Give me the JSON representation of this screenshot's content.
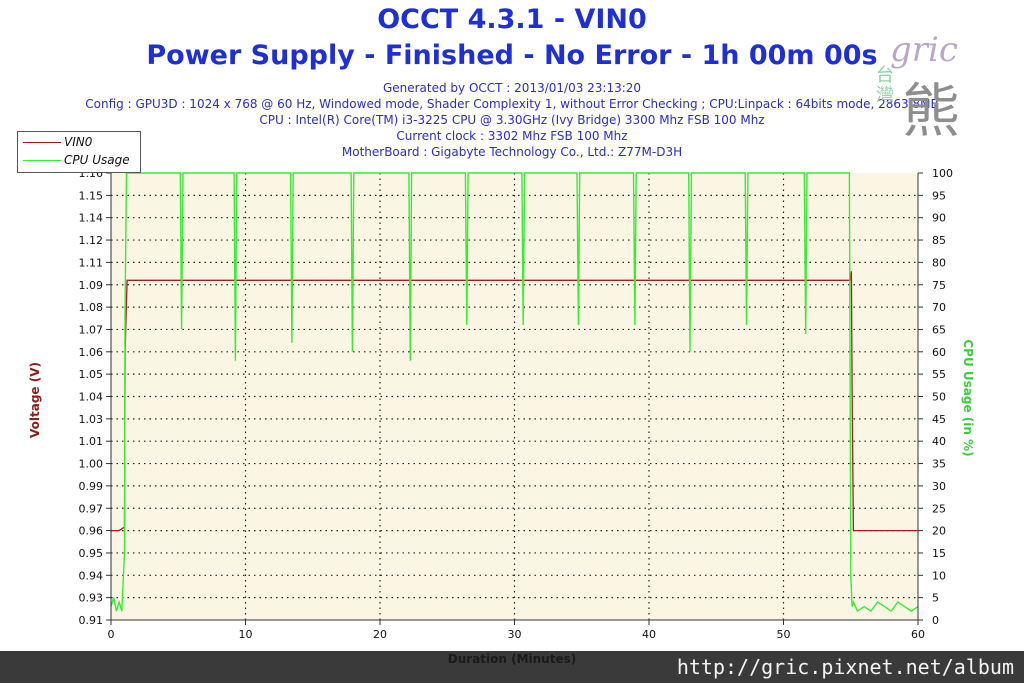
{
  "title": "OCCT 4.3.1 - VIN0",
  "subtitle": "Power Supply - Finished - No Error - 1h 00m 00s",
  "info_lines": [
    "Generated by OCCT : 2013/01/03 23:13:20",
    "Config : GPU3D : 1024 x 768 @ 60 Hz, Windowed mode, Shader Complexity 1, without Error Checking ; CPU:Linpack : 64bits mode, 2863.8MB",
    "CPU : Intel(R) Core(TM) i3-3225 CPU @ 3.30GHz (Ivy Bridge) 3300 Mhz FSB 100 Mhz",
    "Current clock : 3302 Mhz FSB 100 Mhz",
    "MotherBoard : Gigabyte Technology Co., Ltd.: Z77M-D3H"
  ],
  "watermark": {
    "text": "gric",
    "vertical": [
      "台",
      "灣"
    ],
    "mark": "熊"
  },
  "footer_url": "http://gric.pixnet.net/album",
  "colors": {
    "title": "#1f2fd6",
    "info": "#2b2bd0",
    "vin0": "#a02020",
    "cpu": "#33ee33",
    "plot_bg": "#fbf6e4",
    "footer_bg": "#3a3a3a"
  },
  "chart_data": {
    "type": "line",
    "xlabel": "Duration (Minutes)",
    "ylabel": "Voltage (V)",
    "y2label": "CPU Usage (in %)",
    "xlim": [
      0,
      60
    ],
    "ylim": [
      0.91,
      1.16
    ],
    "y2lim": [
      0,
      100
    ],
    "x_ticks": [
      0,
      10,
      20,
      30,
      40,
      50,
      60
    ],
    "y_ticks": [
      0.91,
      0.93,
      0.94,
      0.95,
      0.96,
      0.97,
      0.99,
      1.0,
      1.01,
      1.03,
      1.04,
      1.05,
      1.06,
      1.07,
      1.08,
      1.09,
      1.11,
      1.12,
      1.14,
      1.15,
      1.16
    ],
    "y_tick_labels": [
      "0.91",
      "0.93",
      "0.94",
      "0.95",
      "0.96",
      "0.97",
      "0.99",
      "1.00",
      "1.01",
      "1.03",
      "1.04",
      "1.05",
      "1.06",
      "1.07",
      "1.08",
      "1.09",
      "1.11",
      "1.12",
      "1.14",
      "1.15",
      "1.16"
    ],
    "y2_ticks": [
      0,
      5,
      10,
      15,
      20,
      25,
      30,
      35,
      40,
      45,
      50,
      55,
      60,
      65,
      70,
      75,
      80,
      85,
      90,
      95,
      100
    ],
    "grid": true,
    "legend": "top-left",
    "series": [
      {
        "name": "VIN0",
        "axis": "left",
        "x": [
          0,
          0.6,
          0.6,
          1.0,
          1.05,
          1.2,
          55.0,
          55.05,
          55.1,
          55.2,
          60
        ],
        "y": [
          0.96,
          0.96,
          0.96,
          0.962,
          1.06,
          1.1,
          1.1,
          1.105,
          1.04,
          0.96,
          0.96
        ]
      },
      {
        "name": "CPU Usage",
        "axis": "right",
        "x": [
          0,
          0.2,
          0.4,
          0.6,
          0.8,
          1.0,
          1.05,
          1.15,
          1.25,
          1.35,
          5.15,
          5.25,
          5.35,
          5.45,
          9.15,
          9.25,
          9.35,
          9.45,
          13.35,
          13.45,
          13.55,
          13.65,
          17.85,
          17.95,
          18.05,
          18.15,
          22.15,
          22.25,
          22.35,
          22.45,
          26.35,
          26.45,
          26.55,
          26.65,
          30.55,
          30.65,
          30.75,
          30.85,
          34.65,
          34.75,
          34.85,
          34.95,
          38.85,
          38.95,
          39.05,
          39.15,
          42.95,
          43.05,
          43.15,
          43.25,
          47.15,
          47.25,
          47.35,
          47.45,
          51.55,
          51.65,
          51.75,
          51.85,
          54.9,
          55.0,
          55.1,
          55.2,
          55.5,
          56.0,
          56.5,
          57.0,
          57.5,
          58.0,
          58.5,
          59.0,
          59.5,
          60
        ],
        "y": [
          3,
          5,
          2,
          4,
          2,
          15,
          70,
          100,
          100,
          100,
          100,
          65,
          100,
          100,
          100,
          58,
          100,
          100,
          100,
          62,
          100,
          100,
          100,
          60,
          100,
          100,
          100,
          58,
          100,
          100,
          100,
          66,
          100,
          100,
          100,
          66,
          100,
          100,
          100,
          66,
          100,
          100,
          100,
          66,
          100,
          100,
          100,
          60,
          100,
          100,
          100,
          66,
          100,
          100,
          100,
          64,
          100,
          100,
          100,
          10,
          3,
          4,
          2,
          3,
          2,
          4,
          3,
          2,
          4,
          3,
          2,
          3
        ]
      }
    ]
  }
}
